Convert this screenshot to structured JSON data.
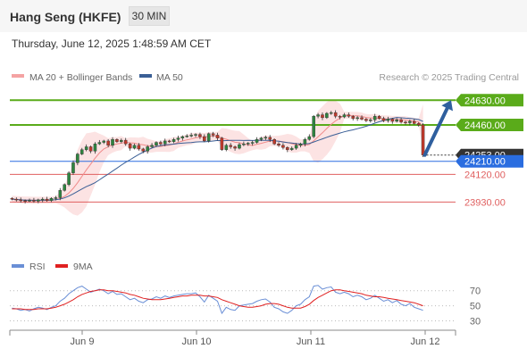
{
  "header": {
    "title": "Hang Seng (HKFE)",
    "interval": "30 MIN"
  },
  "timestamp": "Thursday, June 12, 2025 1:48:59 AM CET",
  "legend": {
    "items": [
      {
        "label": "MA 20 + Bollinger Bands",
        "color": "#f4a3a3"
      },
      {
        "label": "MA 50",
        "color": "#3a5f96"
      }
    ],
    "credit": "Research © 2025 Trading Central"
  },
  "rsi_legend": {
    "items": [
      {
        "label": "RSI",
        "color": "#6a8fd6"
      },
      {
        "label": "9MA",
        "color": "#e02020"
      }
    ]
  },
  "chart_data": [
    {
      "type": "candlestick",
      "x_labels": [
        "Jun 9",
        "Jun 10",
        "Jun 11",
        "Jun 12"
      ],
      "ylim": [
        23650,
        24730
      ],
      "levels": [
        {
          "value": 24630,
          "label": "24630.00",
          "kind": "resistance",
          "color": "#5aab1a"
        },
        {
          "value": 24460,
          "label": "24460.00",
          "kind": "resistance",
          "color": "#5aab1a"
        },
        {
          "value": 24253,
          "label": "24253.00",
          "kind": "last-price",
          "color": "#333333"
        },
        {
          "value": 24210,
          "label": "24210.00",
          "kind": "pivot",
          "color": "#2a6de0"
        },
        {
          "value": 24120,
          "label": "24120.00",
          "kind": "support",
          "color": "#e06060"
        },
        {
          "value": 23930,
          "label": "23930.00",
          "kind": "support",
          "color": "#e06060"
        }
      ],
      "close_series": [
        23950,
        23945,
        23940,
        23938,
        23942,
        23936,
        23945,
        23950,
        23940,
        23955,
        23960,
        24010,
        24050,
        24130,
        24200,
        24260,
        24290,
        24310,
        24280,
        24330,
        24340,
        24350,
        24320,
        24360,
        24345,
        24355,
        24330,
        24300,
        24320,
        24295,
        24280,
        24310,
        24320,
        24340,
        24330,
        24350,
        24345,
        24360,
        24370,
        24380,
        24385,
        24390,
        24395,
        24380,
        24350,
        24400,
        24390,
        24370,
        24290,
        24320,
        24310,
        24300,
        24325,
        24330,
        24335,
        24340,
        24360,
        24370,
        24375,
        24360,
        24330,
        24320,
        24305,
        24290,
        24300,
        24320,
        24330,
        24360,
        24380,
        24520,
        24530,
        24510,
        24540,
        24545,
        24520,
        24515,
        24530,
        24520,
        24505,
        24510,
        24500,
        24490,
        24495,
        24520,
        24505,
        24490,
        24500,
        24485,
        24495,
        24480,
        24475,
        24485,
        24470,
        24460,
        24253
      ],
      "forecast_arrow": {
        "from": 24253,
        "to": 24630
      }
    },
    {
      "type": "line",
      "title": "RSI",
      "ticks": [
        70,
        50,
        30
      ],
      "ylim": [
        20,
        85
      ],
      "series": [
        {
          "name": "RSI",
          "values": [
            47,
            46,
            44,
            45,
            43,
            46,
            48,
            47,
            45,
            48,
            50,
            56,
            60,
            66,
            70,
            74,
            76,
            72,
            68,
            70,
            72,
            70,
            66,
            69,
            65,
            66,
            62,
            58,
            60,
            56,
            54,
            58,
            59,
            62,
            60,
            63,
            61,
            63,
            64,
            65,
            66,
            66,
            67,
            62,
            55,
            64,
            60,
            56,
            40,
            48,
            45,
            44,
            50,
            51,
            52,
            53,
            56,
            58,
            59,
            55,
            48,
            46,
            42,
            40,
            44,
            50,
            52,
            58,
            62,
            76,
            77,
            72,
            74,
            75,
            68,
            66,
            68,
            66,
            62,
            64,
            62,
            58,
            60,
            64,
            60,
            56,
            58,
            54,
            57,
            52,
            50,
            53,
            48,
            46,
            44
          ]
        },
        {
          "name": "9MA",
          "values": [
            46,
            46,
            46,
            45,
            45,
            45,
            46,
            46,
            46,
            47,
            48,
            50,
            52,
            55,
            58,
            62,
            65,
            67,
            69,
            70,
            71,
            71,
            70,
            70,
            69,
            68,
            67,
            65,
            64,
            62,
            60,
            59,
            58,
            58,
            58,
            59,
            60,
            61,
            62,
            63,
            63,
            64,
            64,
            64,
            63,
            63,
            62,
            61,
            58,
            56,
            54,
            52,
            50,
            49,
            48,
            48,
            49,
            50,
            52,
            53,
            53,
            52,
            50,
            48,
            47,
            47,
            47,
            49,
            52,
            57,
            61,
            64,
            67,
            70,
            71,
            71,
            70,
            69,
            68,
            67,
            66,
            64,
            63,
            62,
            62,
            61,
            60,
            59,
            58,
            57,
            56,
            55,
            54,
            52,
            50
          ]
        }
      ]
    }
  ]
}
